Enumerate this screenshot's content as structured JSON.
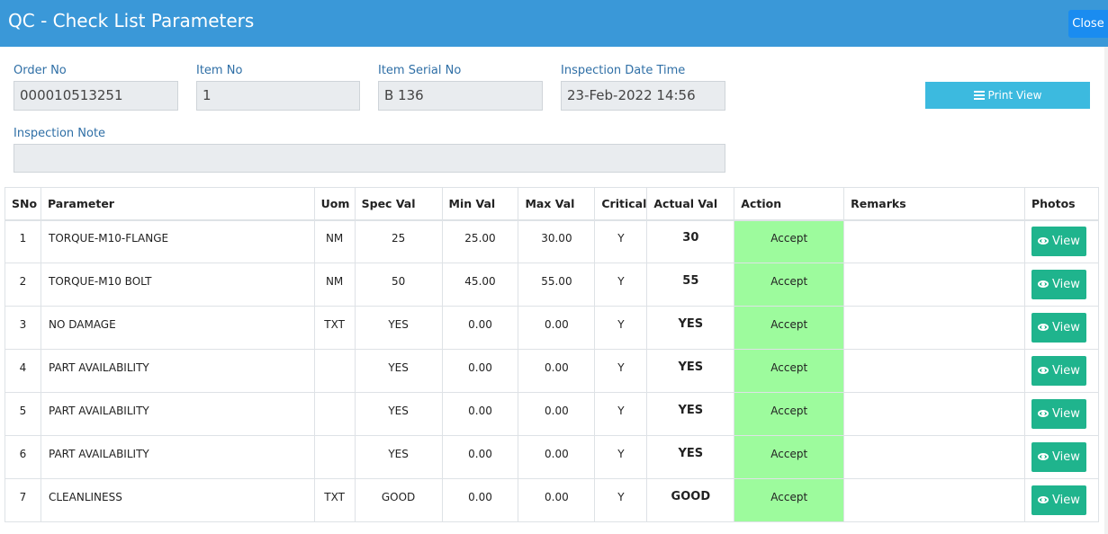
{
  "window": {
    "title": "QC - Check List Parameters",
    "close_label": "Close"
  },
  "form": {
    "order_no_label": "Order No",
    "order_no": "000010513251",
    "item_no_label": "Item No",
    "item_no": "1",
    "item_serial_label": "Item Serial No",
    "item_serial": "B 136",
    "inspection_dt_label": "Inspection Date Time",
    "inspection_dt": "23-Feb-2022 14:56",
    "inspection_note_label": "Inspection Note",
    "inspection_note": "",
    "print_view_label": "Print View"
  },
  "table": {
    "headers": [
      "SNo",
      "Parameter",
      "Uom",
      "Spec Val",
      "Min Val",
      "Max Val",
      "Critical",
      "Actual Val",
      "Action",
      "Remarks",
      "Photos"
    ],
    "rows": [
      [
        "1",
        "TORQUE-M10-FLANGE",
        "NM",
        "25",
        "25.00",
        "30.00",
        "Y",
        "30",
        "Accept",
        "",
        "View"
      ],
      [
        "2",
        "TORQUE-M10 BOLT",
        "NM",
        "50",
        "45.00",
        "55.00",
        "Y",
        "55",
        "Accept",
        "",
        "View"
      ],
      [
        "3",
        "NO DAMAGE",
        "TXT",
        "YES",
        "0.00",
        "0.00",
        "Y",
        "YES",
        "Accept",
        "",
        "View"
      ],
      [
        "4",
        "PART AVAILABILITY",
        "",
        "YES",
        "0.00",
        "0.00",
        "Y",
        "YES",
        "Accept",
        "",
        "View"
      ],
      [
        "5",
        "PART AVAILABILITY",
        "",
        "YES",
        "0.00",
        "0.00",
        "Y",
        "YES",
        "Accept",
        "",
        "View"
      ],
      [
        "6",
        "PART AVAILABILITY",
        "",
        "YES",
        "0.00",
        "0.00",
        "Y",
        "YES",
        "Accept",
        "",
        "View"
      ],
      [
        "7",
        "CLEANLINESS",
        "TXT",
        "GOOD",
        "0.00",
        "0.00",
        "Y",
        "GOOD",
        "Accept",
        "",
        "View"
      ]
    ]
  },
  "colors": {
    "header_bg": "#3a98d8",
    "accept_bg": "#9dfb9d",
    "view_btn": "#1fb48d",
    "print_btn": "#3cbadf"
  }
}
